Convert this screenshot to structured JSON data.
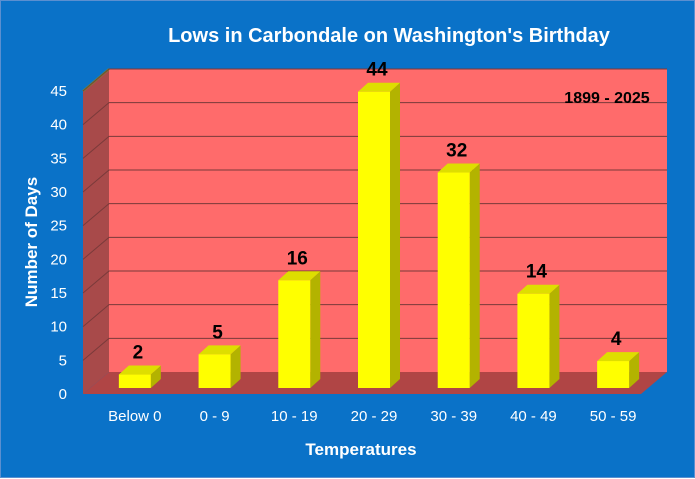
{
  "chart_data": {
    "type": "bar",
    "title": "Lows in Carbondale on Washington's Birthday",
    "annotation": "1899 - 2025",
    "xlabel": "Temperatures",
    "ylabel": "Number of Days",
    "categories": [
      "Below 0",
      "0 - 9",
      "10 - 19",
      "20 - 29",
      "30 - 39",
      "40 - 49",
      "50 - 59"
    ],
    "values": [
      2,
      5,
      16,
      44,
      32,
      14,
      4
    ],
    "ylim": [
      0,
      45
    ],
    "yticks": [
      "0",
      "5",
      "10",
      "15",
      "20",
      "25",
      "30",
      "35",
      "40",
      "45"
    ],
    "grid": true,
    "legend": "none",
    "colors": {
      "background": "#0a72c8",
      "plot_wall": "#ff6b6b",
      "side_wall": "#a84a4a",
      "floor": "#b04545",
      "bar_front": "#ffff00",
      "bar_side": "#b3b300",
      "bar_top": "#dede00"
    }
  }
}
